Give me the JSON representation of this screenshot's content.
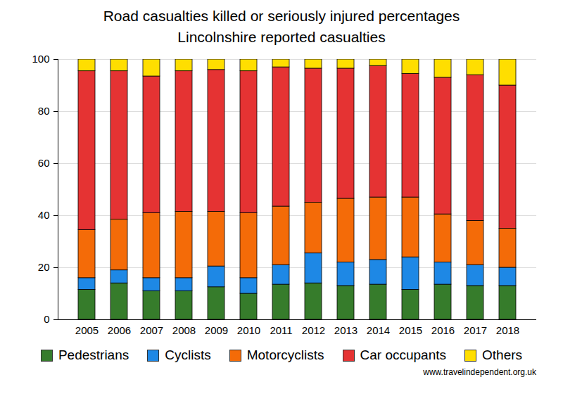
{
  "chart_data": {
    "type": "bar",
    "title": "Road casualties killed or seriously injured percentages",
    "subtitle": "Lincolnshire reported casualties",
    "caption": "www.travelindependent.org.uk",
    "categories": [
      "2005",
      "2006",
      "2007",
      "2008",
      "2009",
      "2010",
      "2011",
      "2012",
      "2013",
      "2014",
      "2015",
      "2016",
      "2017",
      "2018"
    ],
    "series": [
      {
        "name": "Pedestrians",
        "color": "#367c2b",
        "values": [
          11.5,
          14,
          11,
          11,
          12.5,
          10,
          13.5,
          14,
          13,
          13.5,
          11.5,
          13.5,
          13,
          13
        ]
      },
      {
        "name": "Cyclists",
        "color": "#1e88e5",
        "values": [
          4.5,
          5,
          5,
          5,
          8,
          6,
          7.5,
          11.5,
          9,
          9.5,
          12.5,
          8.5,
          8,
          7
        ]
      },
      {
        "name": "Motorcyclists",
        "color": "#f46b08",
        "values": [
          18.5,
          19.5,
          25,
          25.5,
          21,
          25,
          22.5,
          19.5,
          24.5,
          24,
          23,
          18.5,
          17,
          15
        ]
      },
      {
        "name": "Car occupants",
        "color": "#e53333",
        "values": [
          61,
          57,
          52.5,
          54,
          54.5,
          54.5,
          53.5,
          51.5,
          50,
          50.5,
          47.5,
          52.5,
          56,
          55
        ]
      },
      {
        "name": "Others",
        "color": "#ffde00",
        "values": [
          4.5,
          4.5,
          6.5,
          4.5,
          4,
          4.5,
          3,
          3.5,
          3.5,
          2.5,
          5.5,
          7,
          6,
          10
        ]
      }
    ],
    "ylim": [
      0,
      100
    ],
    "yticks": [
      0,
      20,
      40,
      60,
      80,
      100
    ],
    "stacked": true,
    "grid": true,
    "legend": "bottom"
  }
}
